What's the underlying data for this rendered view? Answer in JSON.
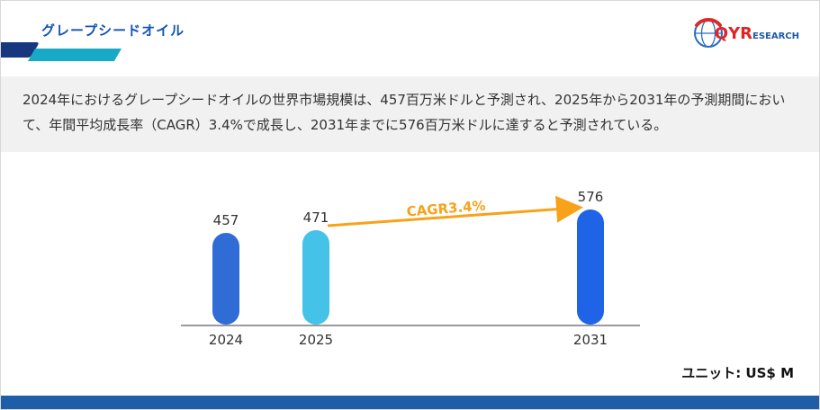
{
  "header": {
    "title": "グレープシードオイル"
  },
  "logo": {
    "part1": "QYR",
    "part2": "ESEARCH"
  },
  "summary": {
    "text": "2024年におけるグレープシードオイルの世界市場規模は、457百万米ドルと予測され、2025年から2031年の予測期間において、年間平均成長率（CAGR）3.4%で成長し、2031年までに576百万米ドルに達すると予測されている。"
  },
  "chart_data": {
    "type": "bar",
    "categories": [
      "2024",
      "2025",
      "2031"
    ],
    "values": [
      457,
      471,
      576
    ],
    "bar_colors": [
      "#2f6cd5",
      "#45c2e8",
      "#1f63e6"
    ],
    "annotation_label": "CAGR3.4%",
    "annotation_from": "2025",
    "annotation_to": "2031",
    "unit_label": "ユニット: US$ M",
    "ylim": [
      0,
      650
    ],
    "grid": false,
    "legend": false,
    "y_axis_visible": false
  },
  "colors": {
    "title_blue": "#1553b5",
    "accent_teal": "#18a9c6",
    "accent_dark_blue": "#17387f",
    "band_gray": "#f1f1f1",
    "footer_blue": "#1e5da8",
    "arrow_orange": "#f7a219",
    "logo_red": "#e02424",
    "logo_blue": "#1d5ba6"
  }
}
